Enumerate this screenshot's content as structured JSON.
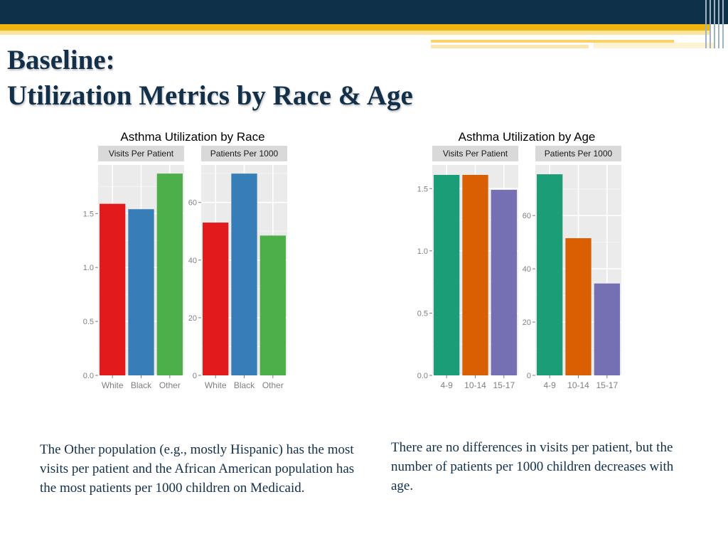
{
  "slide": {
    "title_line1": "Baseline:",
    "title_line2": "Utilization Metrics by Race & Age",
    "caption_left": "The Other population (e.g., mostly Hispanic) has the most visits per patient and the African American population has the most patients per 1000 children on Medicaid.",
    "caption_right": "There are no differences in visits per patient, but the number of patients per 1000 children decreases with age."
  },
  "chart_data": [
    {
      "type": "bar",
      "title": "Asthma Utilization by Race",
      "categories": [
        "White",
        "Black",
        "Other"
      ],
      "colors": [
        "#e31a1c",
        "#377eb8",
        "#4daf4a"
      ],
      "panels": [
        {
          "name": "Visits Per Patient",
          "values": [
            1.59,
            1.54,
            1.87
          ],
          "ylim": [
            0,
            1.95
          ],
          "ticks": [
            0.0,
            0.5,
            1.0,
            1.5
          ],
          "tick_labels": [
            "0.0",
            "0.5",
            "1.0",
            "1.5"
          ]
        },
        {
          "name": "Patients Per 1000",
          "values": [
            53,
            70,
            48.5
          ],
          "ylim": [
            0,
            73
          ],
          "ticks": [
            0,
            20,
            40,
            60
          ],
          "tick_labels": [
            "0",
            "20",
            "40",
            "60"
          ]
        }
      ]
    },
    {
      "type": "bar",
      "title": "Asthma Utilization by Age",
      "categories": [
        "4-9",
        "10-14",
        "15-17"
      ],
      "colors": [
        "#1b9e77",
        "#d95f02",
        "#7570b3"
      ],
      "panels": [
        {
          "name": "Visits Per Patient",
          "values": [
            1.61,
            1.61,
            1.49
          ],
          "ylim": [
            0,
            1.69
          ],
          "ticks": [
            0.0,
            0.5,
            1.0,
            1.5
          ],
          "tick_labels": [
            "0.0",
            "0.5",
            "1.0",
            "1.5"
          ]
        },
        {
          "name": "Patients Per 1000",
          "values": [
            75.5,
            51.5,
            34.5
          ],
          "ylim": [
            0,
            79
          ],
          "ticks": [
            0,
            20,
            40,
            60
          ],
          "tick_labels": [
            "0",
            "20",
            "40",
            "60"
          ]
        }
      ]
    }
  ]
}
